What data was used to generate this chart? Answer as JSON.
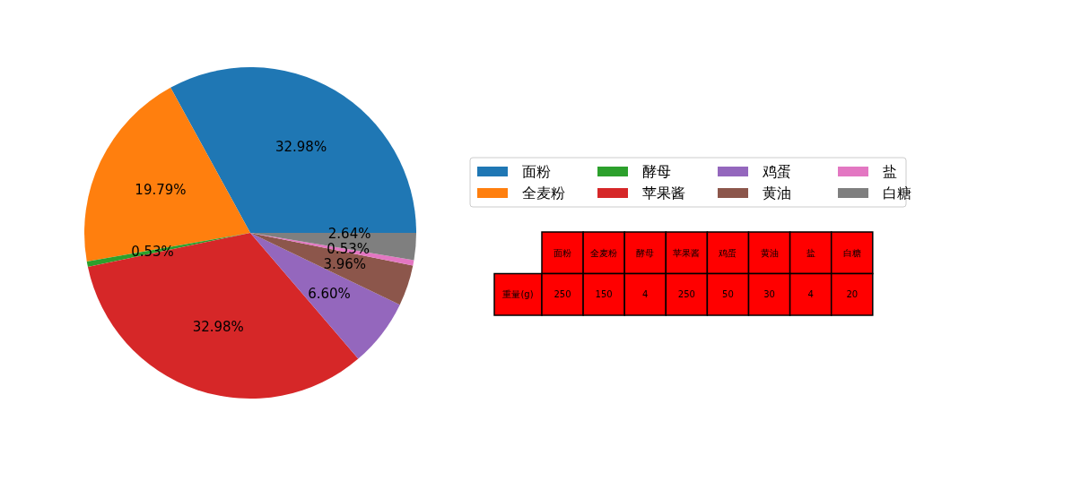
{
  "chart_data": {
    "type": "pie",
    "categories": [
      "面粉",
      "全麦粉",
      "酵母",
      "苹果酱",
      "鸡蛋",
      "黄油",
      "盐",
      "白糖"
    ],
    "values": [
      32.98,
      19.79,
      0.53,
      32.98,
      6.6,
      3.96,
      0.53,
      2.64
    ],
    "colors": [
      "#1f77b4",
      "#ff7f0e",
      "#2ca02c",
      "#d62728",
      "#9467bd",
      "#8c564b",
      "#e377c2",
      "#7f7f7f"
    ],
    "value_labels": [
      "32.98%",
      "19.79%",
      "0.53%",
      "32.98%",
      "6.60%",
      "3.96%",
      "0.53%",
      "2.64%"
    ],
    "legend": "right",
    "annotations": [
      "重量(g)",
      "250",
      "150",
      "4",
      "250",
      "50",
      "30",
      "4",
      "20"
    ]
  }
}
